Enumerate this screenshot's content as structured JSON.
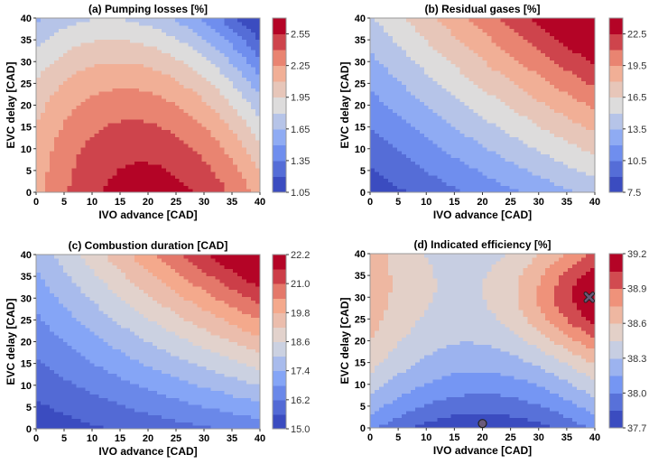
{
  "chart_data": [
    {
      "type": "heatmap",
      "subtype": "filled-contour",
      "title": "(a) Pumping losses [%]",
      "xlabel": "IVO advance [CAD]",
      "ylabel": "EVC delay [CAD]",
      "xlim": [
        0,
        40
      ],
      "ylim": [
        0,
        40
      ],
      "xticks": [
        0,
        5,
        10,
        15,
        20,
        25,
        30,
        35,
        40
      ],
      "yticks": [
        0,
        5,
        10,
        15,
        20,
        25,
        30,
        35,
        40
      ],
      "colorbar": {
        "min": 1.05,
        "max": 2.7,
        "step": 0.15,
        "ticks": [
          "1.05",
          "1.35",
          "1.65",
          "1.95",
          "2.25",
          "2.55"
        ]
      },
      "colormap": "coolwarm",
      "maximum_near": [
        20,
        0
      ],
      "minimum_near": [
        40,
        40
      ]
    },
    {
      "type": "heatmap",
      "subtype": "filled-contour",
      "title": "(b) Residual gases [%]",
      "xlabel": "IVO advance [CAD]",
      "ylabel": "EVC delay [CAD]",
      "xlim": [
        0,
        40
      ],
      "ylim": [
        0,
        40
      ],
      "xticks": [
        0,
        5,
        10,
        15,
        20,
        25,
        30,
        35,
        40
      ],
      "yticks": [
        0,
        5,
        10,
        15,
        20,
        25,
        30,
        35,
        40
      ],
      "colorbar": {
        "min": 7.5,
        "max": 24.0,
        "step": 1.5,
        "ticks": [
          "7.5",
          "10.5",
          "13.5",
          "16.5",
          "19.5",
          "22.5"
        ]
      },
      "colormap": "coolwarm",
      "maximum_near": [
        40,
        40
      ],
      "minimum_near": [
        0,
        0
      ]
    },
    {
      "type": "heatmap",
      "subtype": "filled-contour",
      "title": "(c) Combustion duration [CAD]",
      "xlabel": "IVO advance [CAD]",
      "ylabel": "EVC delay [CAD]",
      "xlim": [
        0,
        40
      ],
      "ylim": [
        0,
        40
      ],
      "xticks": [
        0,
        5,
        10,
        15,
        20,
        25,
        30,
        35,
        40
      ],
      "yticks": [
        0,
        5,
        10,
        15,
        20,
        25,
        30,
        35,
        40
      ],
      "colorbar": {
        "min": 15.0,
        "max": 22.2,
        "step": 0.6,
        "ticks": [
          "15.0",
          "16.2",
          "17.4",
          "18.6",
          "19.8",
          "21.0",
          "22.2"
        ]
      },
      "colormap": "coolwarm",
      "maximum_near": [
        40,
        40
      ],
      "minimum_near": [
        0,
        0
      ]
    },
    {
      "type": "heatmap",
      "subtype": "filled-contour",
      "title": "(d) Indicated efficiency [%]",
      "xlabel": "IVO advance [CAD]",
      "ylabel": "EVC delay [CAD]",
      "xlim": [
        0,
        40
      ],
      "ylim": [
        0,
        40
      ],
      "xticks": [
        0,
        5,
        10,
        15,
        20,
        25,
        30,
        35,
        40
      ],
      "yticks": [
        0,
        5,
        10,
        15,
        20,
        25,
        30,
        35,
        40
      ],
      "colorbar": {
        "min": 37.7,
        "max": 39.2,
        "step": 0.15,
        "ticks": [
          "37.7",
          "38.0",
          "38.3",
          "38.6",
          "38.9",
          "39.2"
        ]
      },
      "colormap": "coolwarm",
      "maximum_near": [
        39,
        30
      ],
      "minimum_near": [
        20,
        0
      ],
      "markers": [
        {
          "shape": "circle",
          "x": 20,
          "y": 1
        },
        {
          "shape": "x",
          "x": 39,
          "y": 30
        }
      ]
    }
  ]
}
